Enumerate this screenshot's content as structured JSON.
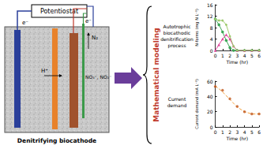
{
  "diagram": {
    "potentiostat": "Potentiostat",
    "electron_labels": [
      "e⁻",
      "e⁻"
    ],
    "proton_label": "H⁺",
    "gas_label": "N₂",
    "substrate_label": "NO₃⁻, NO₂⁻",
    "caption": "Denitrifying biocathode",
    "modeling_title": "Mathematical modeling",
    "process_label": "Autotrophic biocathodic denitrification process",
    "current_label": "Current demand"
  },
  "chart_data": [
    {
      "type": "line",
      "x_label": "Time (hr)",
      "y_label": "N-forms (mg N L⁻¹)",
      "xlim": [
        0,
        6
      ],
      "xticks": [
        0,
        1,
        2,
        3,
        4,
        5,
        6
      ],
      "ylim": [
        0,
        16
      ],
      "yticks": [
        0,
        4,
        8,
        12,
        16
      ],
      "grid": false,
      "series": [
        {
          "color": "#3aa655",
          "marker": "circle",
          "x": [
            0,
            0.5,
            1,
            1.5,
            2,
            2.5,
            3,
            4,
            5,
            6
          ],
          "values": [
            11,
            9,
            6.5,
            3.5,
            1,
            0,
            0,
            0,
            0,
            0
          ]
        },
        {
          "color": "#e0449a",
          "marker": "triangle",
          "x": [
            0,
            0.5,
            1,
            1.5,
            2,
            2.5,
            3,
            4,
            5,
            6
          ],
          "values": [
            0,
            2,
            4,
            5.5,
            4,
            1.5,
            0,
            0,
            0,
            0
          ]
        },
        {
          "color": "#9cc96b",
          "marker": "diamond",
          "x": [
            0,
            0.5,
            1,
            1.5,
            2,
            2.5,
            3,
            4,
            5,
            6
          ],
          "values": [
            11,
            10.5,
            10.5,
            9,
            5,
            1.5,
            0,
            0,
            0,
            0
          ]
        }
      ]
    },
    {
      "type": "scatter",
      "x_label": "Time (hr)",
      "y_label": "Current demand (mA L⁻¹)",
      "xlim": [
        0,
        6
      ],
      "xticks": [
        0,
        1,
        2,
        3,
        4,
        5,
        6
      ],
      "ylim": [
        0,
        60
      ],
      "yticks": [
        0,
        20,
        40,
        60
      ],
      "grid": false,
      "series": [
        {
          "type": "scatter",
          "color": "#c0561b",
          "marker": "circle",
          "x": [
            0,
            1,
            2,
            3,
            4,
            5,
            6
          ],
          "values": [
            53,
            48,
            37,
            27,
            20,
            17,
            17
          ]
        },
        {
          "type": "line",
          "color": "#f4a340",
          "line_style": "dashed",
          "marker": "none",
          "x": [
            0,
            1,
            2,
            3,
            4,
            5,
            6
          ],
          "values": [
            54,
            46,
            36,
            26,
            20,
            17,
            17
          ]
        }
      ]
    }
  ]
}
